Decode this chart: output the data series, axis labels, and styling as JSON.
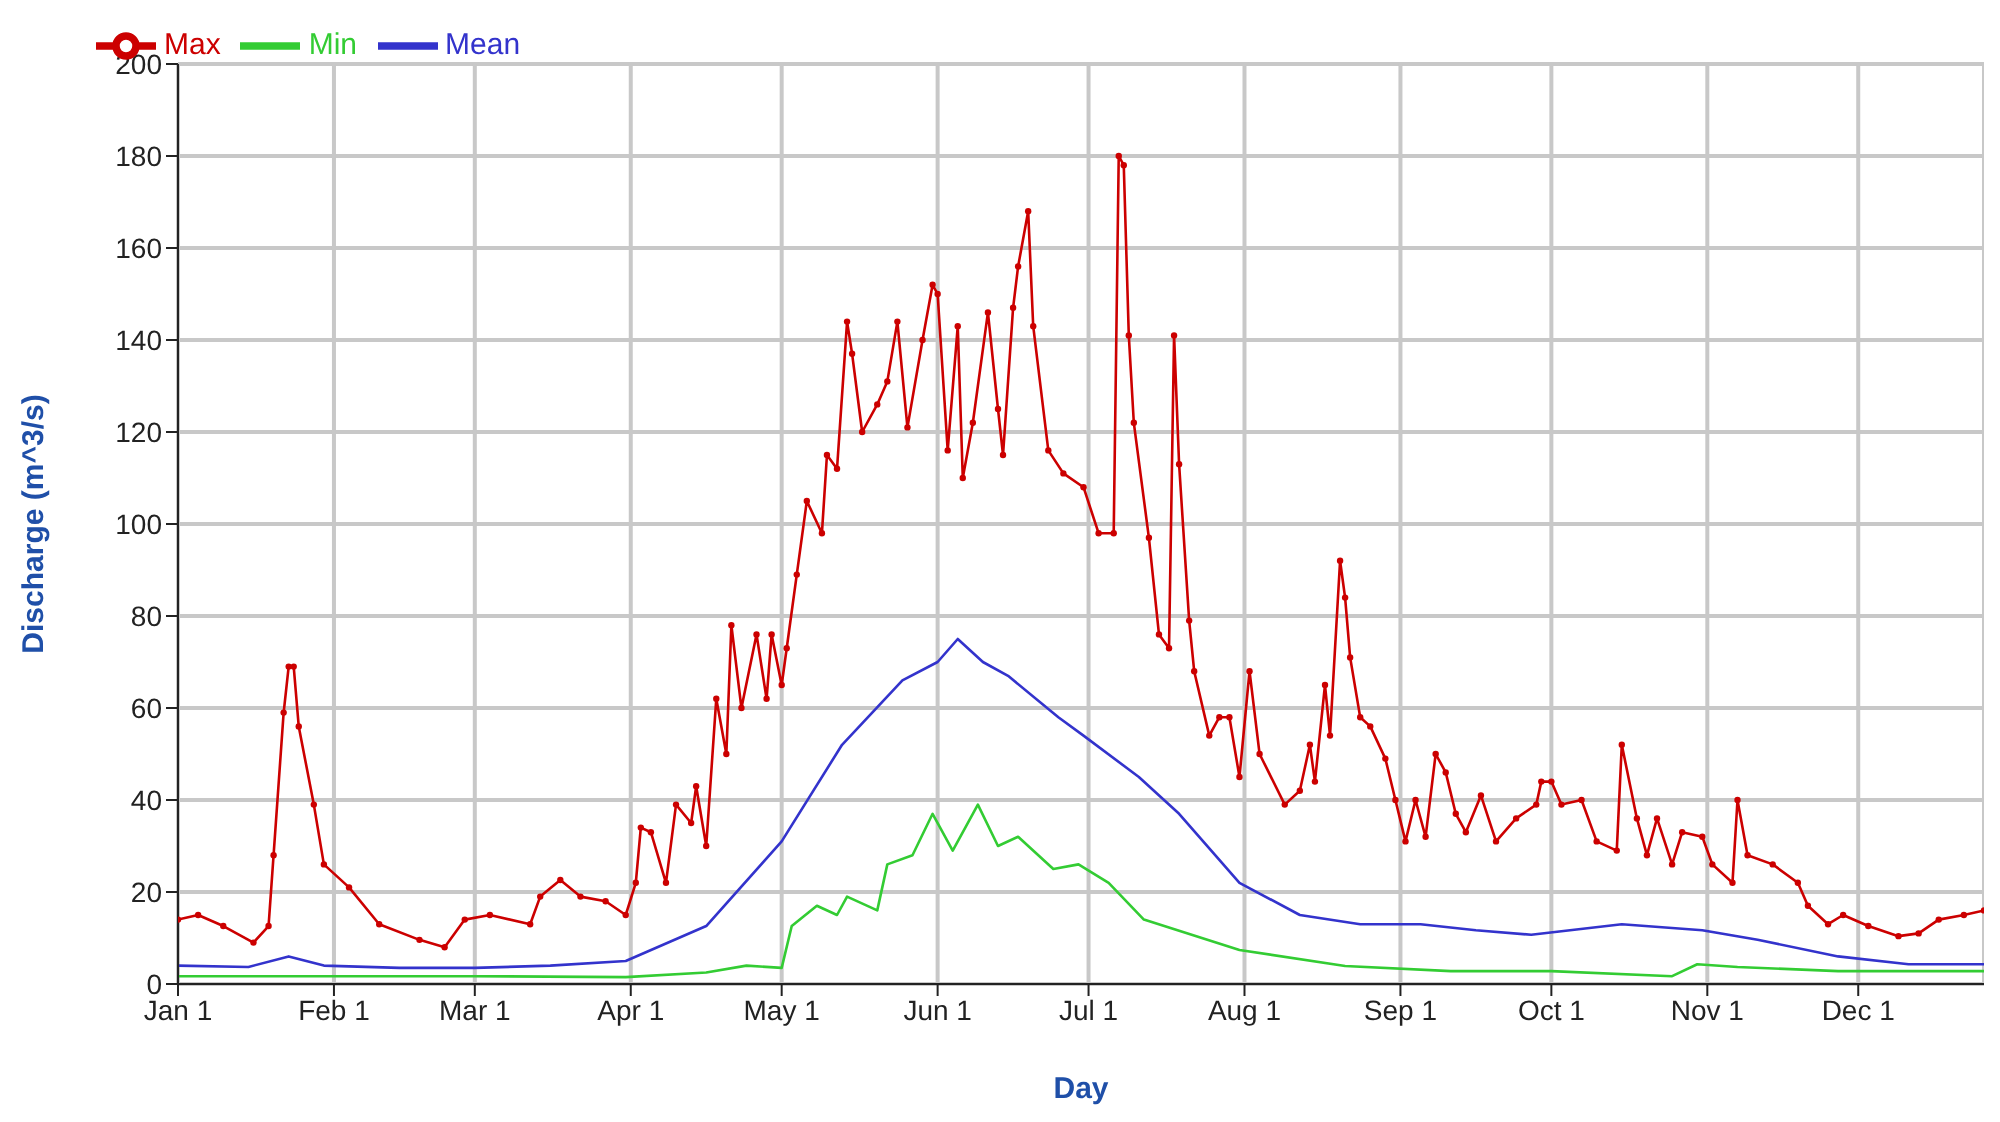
{
  "chart_data": {
    "type": "line",
    "xlabel": "Day",
    "ylabel": "Discharge (m^3/s)",
    "xlim": [
      "--01-01",
      "--12-26"
    ],
    "ylim": [
      0,
      200
    ],
    "xticks": [
      {
        "value": "--01-01",
        "label": "Jan 1"
      },
      {
        "value": "--02-01",
        "label": "Feb 1"
      },
      {
        "value": "--03-01",
        "label": "Mar 1"
      },
      {
        "value": "--04-01",
        "label": "Apr 1"
      },
      {
        "value": "--05-01",
        "label": "May 1"
      },
      {
        "value": "--06-01",
        "label": "Jun 1"
      },
      {
        "value": "--07-01",
        "label": "Jul 1"
      },
      {
        "value": "--08-01",
        "label": "Aug 1"
      },
      {
        "value": "--09-01",
        "label": "Sep 1"
      },
      {
        "value": "--10-01",
        "label": "Oct 1"
      },
      {
        "value": "--11-01",
        "label": "Nov 1"
      },
      {
        "value": "--12-01",
        "label": "Dec 1"
      }
    ],
    "yticks": [
      0,
      20,
      40,
      60,
      80,
      100,
      120,
      140,
      160,
      180,
      200
    ],
    "grid": true,
    "legend": "top left",
    "line_style": "solid",
    "series": [
      {
        "name": "Max",
        "color": "#cc0000",
        "marker": "circle",
        "x": [
          "--01-01",
          "--01-05",
          "--01-10",
          "--01-16",
          "--01-19",
          "--01-20",
          "--01-22",
          "--01-23",
          "--01-24",
          "--01-25",
          "--01-28",
          "--01-30",
          "--02-04",
          "--02-10",
          "--02-18",
          "--02-23",
          "--02-27",
          "--03-04",
          "--03-12",
          "--03-14",
          "--03-18",
          "--03-22",
          "--03-27",
          "--03-31",
          "--04-02",
          "--04-03",
          "--04-05",
          "--04-08",
          "--04-10",
          "--04-13",
          "--04-14",
          "--04-16",
          "--04-18",
          "--04-20",
          "--04-21",
          "--04-23",
          "--04-26",
          "--04-28",
          "--04-29",
          "--05-01",
          "--05-02",
          "--05-04",
          "--05-06",
          "--05-09",
          "--05-10",
          "--05-12",
          "--05-14",
          "--05-15",
          "--05-17",
          "--05-20",
          "--05-22",
          "--05-24",
          "--05-26",
          "--05-29",
          "--05-31",
          "--06-01",
          "--06-03",
          "--06-05",
          "--06-06",
          "--06-08",
          "--06-11",
          "--06-13",
          "--06-14",
          "--06-16",
          "--06-17",
          "--06-19",
          "--06-20",
          "--06-23",
          "--06-26",
          "--06-30",
          "--07-03",
          "--07-06",
          "--07-07",
          "--07-08",
          "--07-09",
          "--07-10",
          "--07-13",
          "--07-15",
          "--07-17",
          "--07-18",
          "--07-19",
          "--07-21",
          "--07-22",
          "--07-25",
          "--07-27",
          "--07-29",
          "--07-31",
          "--08-02",
          "--08-04",
          "--08-09",
          "--08-12",
          "--08-14",
          "--08-15",
          "--08-17",
          "--08-18",
          "--08-20",
          "--08-21",
          "--08-22",
          "--08-24",
          "--08-26",
          "--08-29",
          "--08-31",
          "--09-02",
          "--09-04",
          "--09-06",
          "--09-08",
          "--09-10",
          "--09-12",
          "--09-14",
          "--09-17",
          "--09-20",
          "--09-24",
          "--09-28",
          "--09-29",
          "--10-01",
          "--10-03",
          "--10-07",
          "--10-10",
          "--10-14",
          "--10-15",
          "--10-18",
          "--10-20",
          "--10-22",
          "--10-25",
          "--10-27",
          "--10-31",
          "--11-02",
          "--11-06",
          "--11-07",
          "--11-09",
          "--11-14",
          "--11-19",
          "--11-21",
          "--11-25",
          "--11-28",
          "--12-03",
          "--12-09",
          "--12-13",
          "--12-17",
          "--12-22",
          "--12-26"
        ],
        "values": [
          14,
          15,
          12.6,
          9,
          12.6,
          28,
          59,
          69,
          69,
          56,
          39,
          26,
          21,
          13,
          9.6,
          8,
          14,
          15,
          13,
          19,
          22.6,
          19,
          18,
          15,
          22,
          34,
          33,
          22,
          39,
          35,
          43,
          30,
          62,
          50,
          78,
          60,
          76,
          62,
          76,
          65,
          73,
          89,
          105,
          98,
          115,
          112,
          144,
          137,
          120,
          126,
          131,
          144,
          121,
          140,
          152,
          150,
          116,
          143,
          110,
          122,
          146,
          125,
          115,
          147,
          156,
          168,
          143,
          116,
          111,
          108,
          98,
          98,
          180,
          178,
          141,
          122,
          97,
          76,
          73,
          141,
          113,
          79,
          68,
          54,
          58,
          58,
          45,
          68,
          50,
          39,
          42,
          52,
          44,
          65,
          54,
          92,
          84,
          71,
          58,
          56,
          49,
          40,
          31,
          40,
          32,
          50,
          46,
          37,
          33,
          41,
          31,
          36,
          39,
          44,
          44,
          39,
          40,
          31,
          29,
          52,
          36,
          28,
          36,
          26,
          33,
          32,
          26,
          22,
          40,
          28,
          26,
          22,
          17,
          13,
          15,
          12.6,
          10.4,
          11,
          14,
          15,
          16
        ]
      },
      {
        "name": "Min",
        "color": "#33cc33",
        "marker": "none",
        "x": [
          "--01-01",
          "--01-30",
          "--03-01",
          "--03-31",
          "--04-16",
          "--04-24",
          "--05-01",
          "--05-03",
          "--05-08",
          "--05-12",
          "--05-14",
          "--05-20",
          "--05-22",
          "--05-27",
          "--05-31",
          "--06-04",
          "--06-09",
          "--06-13",
          "--06-17",
          "--06-24",
          "--06-29",
          "--07-05",
          "--07-12",
          "--07-31",
          "--08-21",
          "--09-11",
          "--10-01",
          "--10-25",
          "--10-30",
          "--11-07",
          "--11-27",
          "--12-26"
        ],
        "values": [
          1.7,
          1.7,
          1.7,
          1.5,
          2.5,
          4,
          3.5,
          12.6,
          17,
          15,
          19,
          16,
          26,
          28,
          37,
          29,
          39,
          30,
          32,
          25,
          26,
          22,
          14,
          7.4,
          3.9,
          2.8,
          2.8,
          1.7,
          4.3,
          3.7,
          2.8,
          2.8
        ]
      },
      {
        "name": "Mean",
        "color": "#3333cc",
        "marker": "none",
        "x": [
          "--01-01",
          "--01-15",
          "--01-23",
          "--01-30",
          "--02-14",
          "--03-01",
          "--03-16",
          "--03-31",
          "--04-16",
          "--05-01",
          "--05-13",
          "--05-25",
          "--06-01",
          "--06-05",
          "--06-10",
          "--06-15",
          "--06-25",
          "--06-30",
          "--07-11",
          "--07-19",
          "--07-31",
          "--08-12",
          "--08-24",
          "--09-05",
          "--09-16",
          "--09-27",
          "--10-15",
          "--10-31",
          "--11-11",
          "--11-27",
          "--12-11",
          "--12-26"
        ],
        "values": [
          4,
          3.7,
          6,
          4,
          3.5,
          3.5,
          4,
          5,
          12.6,
          31,
          52,
          66,
          70,
          75,
          70,
          67,
          58,
          54,
          45,
          37,
          22,
          15,
          13,
          13,
          11.7,
          10.7,
          13,
          11.7,
          9.6,
          6,
          4.3,
          4.3
        ]
      }
    ]
  }
}
